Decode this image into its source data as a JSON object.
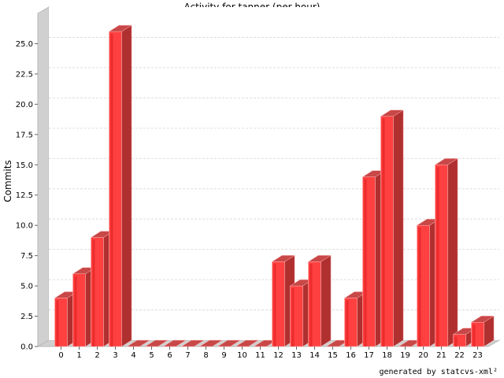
{
  "chart_data": {
    "type": "bar",
    "title": "Activity for tanner (per hour)",
    "xlabel": "",
    "ylabel": "Commits",
    "categories": [
      "0",
      "1",
      "2",
      "3",
      "4",
      "5",
      "6",
      "7",
      "8",
      "9",
      "10",
      "11",
      "12",
      "13",
      "14",
      "15",
      "16",
      "17",
      "18",
      "19",
      "20",
      "21",
      "22",
      "23"
    ],
    "values": [
      4,
      6,
      9,
      26,
      0,
      0,
      0,
      0,
      0,
      0,
      0,
      0,
      7,
      5,
      7,
      0,
      4,
      14,
      19,
      0,
      10,
      15,
      1,
      2
    ],
    "ylim": [
      0,
      27.5
    ],
    "yticks": [
      "0.0",
      "2.5",
      "5.0",
      "7.5",
      "10.0",
      "12.5",
      "15.0",
      "17.5",
      "20.0",
      "22.5",
      "25.0"
    ],
    "grid": true,
    "bar_color": "#ff4040",
    "credit": "generated by statcvs-xml²"
  }
}
